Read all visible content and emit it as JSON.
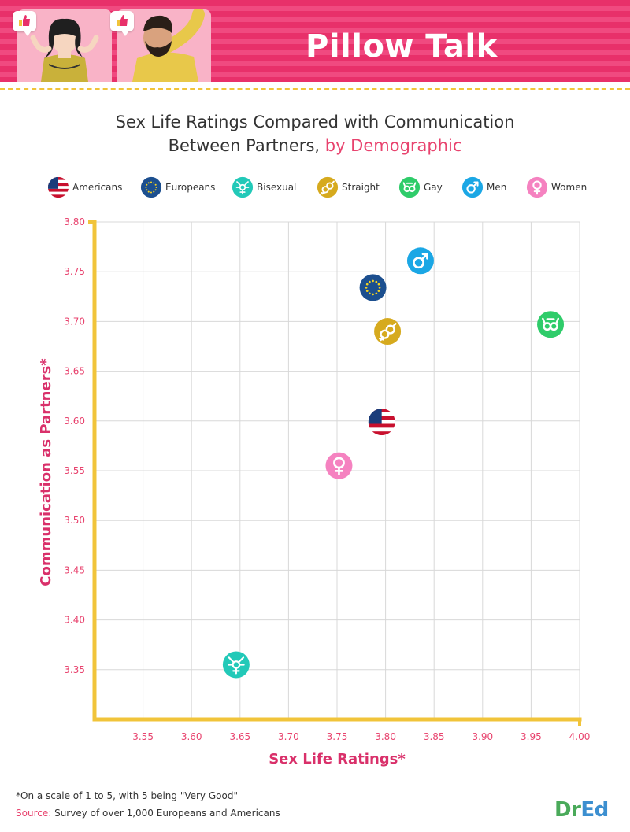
{
  "header": {
    "title": "Pillow Talk"
  },
  "chart_title": {
    "line1": "Sex Life Ratings Compared with Communication",
    "line2_prefix": "Between Partners, ",
    "line2_accent": "by Demographic"
  },
  "legend": [
    {
      "label": "Americans",
      "icon": "us-flag-icon",
      "color": "#c8102e"
    },
    {
      "label": "Europeans",
      "icon": "eu-flag-icon",
      "color": "#1c4f8f"
    },
    {
      "label": "Bisexual",
      "icon": "bisexual-symbol-icon",
      "color": "#22c9b8"
    },
    {
      "label": "Straight",
      "icon": "straight-symbol-icon",
      "color": "#d6aa1e"
    },
    {
      "label": "Gay",
      "icon": "gay-symbol-icon",
      "color": "#2fcc6a"
    },
    {
      "label": "Men",
      "icon": "male-symbol-icon",
      "color": "#1ba7e5"
    },
    {
      "label": "Women",
      "icon": "female-symbol-icon",
      "color": "#f582c0"
    }
  ],
  "chart_data": {
    "type": "scatter",
    "xlabel": "Sex Life Ratings*",
    "ylabel": "Communication as Partners*",
    "xlim": [
      3.5,
      4.0
    ],
    "ylim": [
      3.3,
      3.8
    ],
    "x_ticks": [
      "3.55",
      "3.60",
      "3.65",
      "3.70",
      "3.75",
      "3.80",
      "3.85",
      "3.90",
      "3.95",
      "4.00"
    ],
    "y_ticks": [
      "3.80",
      "3.75",
      "3.70",
      "3.65",
      "3.60",
      "3.55",
      "3.50",
      "3.45",
      "3.40",
      "3.35"
    ],
    "grid": true,
    "legend_position": "top",
    "axis_color": "#f1c43a",
    "tick_color": "#e8436e",
    "points": [
      {
        "name": "Americans",
        "x": 3.796,
        "y": 3.599
      },
      {
        "name": "Europeans",
        "x": 3.787,
        "y": 3.734
      },
      {
        "name": "Bisexual",
        "x": 3.646,
        "y": 3.355
      },
      {
        "name": "Straight",
        "x": 3.802,
        "y": 3.69
      },
      {
        "name": "Gay",
        "x": 3.97,
        "y": 3.697
      },
      {
        "name": "Men",
        "x": 3.836,
        "y": 3.761
      },
      {
        "name": "Women",
        "x": 3.752,
        "y": 3.555
      }
    ]
  },
  "footnote": "*On a scale of 1 to 5, with 5 being \"Very Good\"",
  "source": {
    "label": "Source:",
    "text": " Survey of over 1,000 Europeans and Americans"
  },
  "brand": {
    "part1": "Dr",
    "part2": "Ed"
  }
}
